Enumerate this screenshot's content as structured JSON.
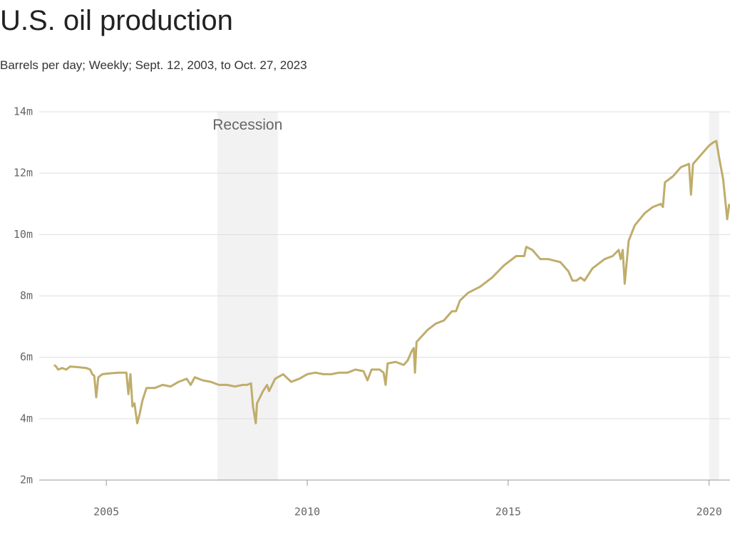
{
  "chart_data": {
    "type": "line",
    "title": "U.S. oil production",
    "subtitle": "Barrels per day; Weekly; Sept. 12, 2003, to Oct. 27, 2023",
    "x": [
      2003.7,
      2003.75,
      2003.8,
      2003.9,
      2004.0,
      2004.1,
      2004.3,
      2004.5,
      2004.6,
      2004.65,
      2004.7,
      2004.75,
      2004.8,
      2004.9,
      2005.1,
      2005.3,
      2005.5,
      2005.55,
      2005.6,
      2005.65,
      2005.7,
      2005.77,
      2005.82,
      2005.9,
      2006.0,
      2006.2,
      2006.4,
      2006.6,
      2006.8,
      2007.0,
      2007.1,
      2007.2,
      2007.4,
      2007.6,
      2007.8,
      2008.0,
      2008.2,
      2008.4,
      2008.5,
      2008.6,
      2008.65,
      2008.7,
      2008.72,
      2008.75,
      2008.9,
      2009.0,
      2009.05,
      2009.2,
      2009.4,
      2009.6,
      2009.8,
      2010.0,
      2010.2,
      2010.4,
      2010.6,
      2010.8,
      2011.0,
      2011.2,
      2011.4,
      2011.5,
      2011.6,
      2011.8,
      2011.9,
      2011.95,
      2012.0,
      2012.2,
      2012.4,
      2012.5,
      2012.6,
      2012.65,
      2012.68,
      2012.72,
      2013.0,
      2013.2,
      2013.4,
      2013.6,
      2013.7,
      2013.8,
      2014.0,
      2014.3,
      2014.6,
      2014.9,
      2015.2,
      2015.4,
      2015.45,
      2015.6,
      2015.8,
      2016.0,
      2016.3,
      2016.5,
      2016.6,
      2016.7,
      2016.8,
      2016.9,
      2017.1,
      2017.4,
      2017.6,
      2017.75,
      2017.8,
      2017.85,
      2017.9,
      2018.0,
      2018.15,
      2018.4,
      2018.6,
      2018.8,
      2018.85,
      2018.9,
      2019.1,
      2019.3,
      2019.5,
      2019.55,
      2019.6,
      2019.8,
      2020.0,
      2020.1,
      2020.18,
      2020.25,
      2020.35,
      2020.45,
      2020.5
    ],
    "series": [
      {
        "color": "#bfad6b",
        "values": [
          5.75,
          5.7,
          5.6,
          5.65,
          5.6,
          5.7,
          5.68,
          5.65,
          5.6,
          5.45,
          5.4,
          4.7,
          5.35,
          5.45,
          5.48,
          5.5,
          5.5,
          4.8,
          5.45,
          4.4,
          4.5,
          3.85,
          4.1,
          4.6,
          5.0,
          5.0,
          5.1,
          5.05,
          5.2,
          5.3,
          5.1,
          5.35,
          5.25,
          5.2,
          5.1,
          5.1,
          5.05,
          5.1,
          5.1,
          5.15,
          4.4,
          4.0,
          3.85,
          4.5,
          4.9,
          5.1,
          4.9,
          5.3,
          5.45,
          5.2,
          5.3,
          5.45,
          5.5,
          5.45,
          5.45,
          5.5,
          5.5,
          5.6,
          5.55,
          5.25,
          5.6,
          5.6,
          5.5,
          5.1,
          5.8,
          5.85,
          5.75,
          5.9,
          6.2,
          6.3,
          5.5,
          6.5,
          6.9,
          7.1,
          7.2,
          7.5,
          7.5,
          7.85,
          8.1,
          8.3,
          8.6,
          9.0,
          9.3,
          9.3,
          9.6,
          9.5,
          9.2,
          9.2,
          9.1,
          8.8,
          8.5,
          8.5,
          8.6,
          8.5,
          8.9,
          9.2,
          9.3,
          9.5,
          9.2,
          9.5,
          8.4,
          9.8,
          10.3,
          10.7,
          10.9,
          11.0,
          10.9,
          11.7,
          11.9,
          12.2,
          12.3,
          11.3,
          12.3,
          12.6,
          12.9,
          13.0,
          13.05,
          12.5,
          11.8,
          10.5,
          11.0
        ]
      }
    ],
    "shaded_regions": [
      {
        "label": "Recession",
        "x": [
          2007.76,
          2009.27
        ]
      },
      {
        "x": [
          2020.0,
          2020.25
        ]
      }
    ],
    "shade_color": "#f2f2f2",
    "xlim": [
      2003.33,
      2020.52
    ],
    "xticks": [
      2005,
      2010,
      2015,
      2020
    ],
    "ylim": [
      2,
      14
    ],
    "yticks": [
      {
        "value": 2,
        "label": "2m"
      },
      {
        "value": 4,
        "label": "4m"
      },
      {
        "value": 6,
        "label": "6m"
      },
      {
        "value": 8,
        "label": "8m"
      },
      {
        "value": 10,
        "label": "10m"
      },
      {
        "value": 12,
        "label": "12m"
      },
      {
        "value": 14,
        "label": "14m"
      }
    ],
    "grid": true
  }
}
